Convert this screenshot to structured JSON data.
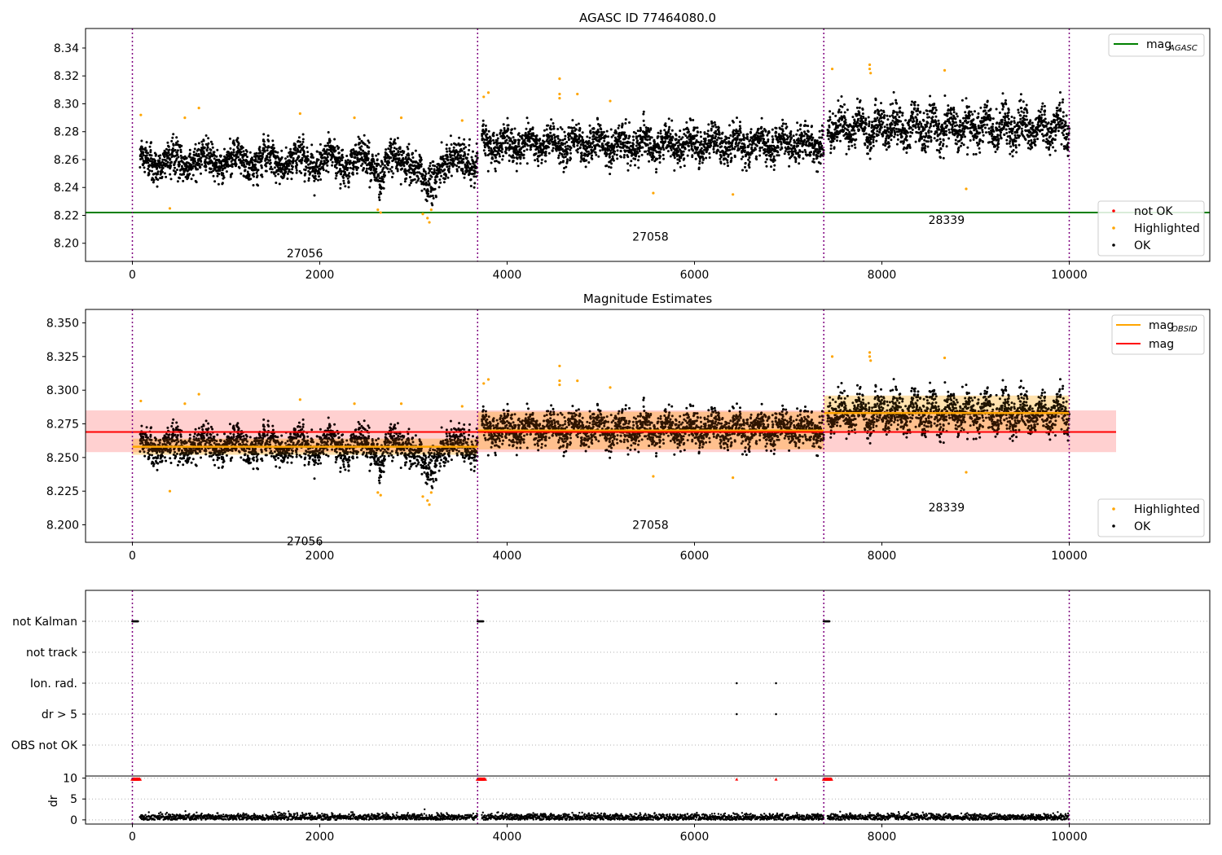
{
  "chart_data": [
    {
      "id": "p1",
      "type": "scatter",
      "title": "AGASC ID 77464080.0",
      "xlabel": "",
      "ylabel": "",
      "xlim": [
        -500,
        11500
      ],
      "ylim": [
        8.187,
        8.354
      ],
      "xticks": [
        0,
        2000,
        4000,
        6000,
        8000,
        10000
      ],
      "yticks": [
        8.2,
        8.22,
        8.24,
        8.26,
        8.28,
        8.3,
        8.32,
        8.34
      ],
      "ytick_decimals": 2,
      "obs_boundaries": [
        0,
        3685,
        7380,
        10000
      ],
      "obs_labels": [
        {
          "text": "27056",
          "x": 1840,
          "y": 8.19
        },
        {
          "text": "27058",
          "x": 5530,
          "y": 8.202
        },
        {
          "text": "28339",
          "x": 8690,
          "y": 8.214
        }
      ],
      "segments": [
        {
          "start": 80,
          "end": 3685,
          "base": 8.259,
          "amp": 0.009,
          "noise": 0.007,
          "dip_at": 3150,
          "dip_depth": 0.03
        },
        {
          "start": 3730,
          "end": 7380,
          "base": 8.271,
          "amp": 0.009,
          "noise": 0.007,
          "dip_at": null,
          "dip_depth": 0
        },
        {
          "start": 7420,
          "end": 10000,
          "base": 8.283,
          "amp": 0.012,
          "noise": 0.008,
          "dip_at": null,
          "dip_depth": 0
        }
      ],
      "highlighted": [
        [
          90,
          8.292
        ],
        [
          400,
          8.225
        ],
        [
          560,
          8.29
        ],
        [
          710,
          8.297
        ],
        [
          1790,
          8.293
        ],
        [
          2370,
          8.29
        ],
        [
          2620,
          8.224
        ],
        [
          2650,
          8.222
        ],
        [
          2870,
          8.29
        ],
        [
          3100,
          8.221
        ],
        [
          3150,
          8.218
        ],
        [
          3170,
          8.215
        ],
        [
          3190,
          8.224
        ],
        [
          3520,
          8.288
        ],
        [
          3750,
          8.305
        ],
        [
          3800,
          8.308
        ],
        [
          4560,
          8.318
        ],
        [
          4560,
          8.307
        ],
        [
          4560,
          8.304
        ],
        [
          4750,
          8.307
        ],
        [
          5100,
          8.302
        ],
        [
          5560,
          8.236
        ],
        [
          6410,
          8.235
        ],
        [
          7470,
          8.325
        ],
        [
          7870,
          8.328
        ],
        [
          7870,
          8.325
        ],
        [
          7880,
          8.322
        ],
        [
          8670,
          8.324
        ],
        [
          8900,
          8.239
        ]
      ],
      "hlines": [
        {
          "name": "mag_AGASC",
          "value": 8.222,
          "color": "#008000"
        }
      ],
      "legend_top": {
        "position": "top-right",
        "entries": [
          {
            "label": "mag",
            "sub": "AGASC",
            "color": "#008000"
          }
        ]
      },
      "legend_bottom": {
        "position": "lower-right",
        "entries": [
          {
            "label": "not OK",
            "color": "#ff0000"
          },
          {
            "label": "Highlighted",
            "color": "#ffa500"
          },
          {
            "label": "OK",
            "color": "#000000"
          }
        ]
      }
    },
    {
      "id": "p2",
      "type": "scatter",
      "title": "Magnitude Estimates",
      "xlabel": "",
      "ylabel": "",
      "xlim": [
        -500,
        11500
      ],
      "ylim": [
        8.187,
        8.36
      ],
      "xticks": [
        0,
        2000,
        4000,
        6000,
        8000,
        10000
      ],
      "yticks": [
        8.2,
        8.225,
        8.25,
        8.275,
        8.3,
        8.325,
        8.35
      ],
      "ytick_decimals": 3,
      "obs_boundaries": [
        0,
        3685,
        7380,
        10000
      ],
      "obs_labels": [
        {
          "text": "27056",
          "x": 1840,
          "y": 8.185
        },
        {
          "text": "27058",
          "x": 5530,
          "y": 8.197
        },
        {
          "text": "28339",
          "x": 8690,
          "y": 8.21
        }
      ],
      "mag": {
        "value": 8.269,
        "band": [
          8.254,
          8.285
        ],
        "xrange": [
          -500,
          10500
        ],
        "color": "#ff0000"
      },
      "mag_obsid": [
        {
          "start": 0,
          "end": 3685,
          "value": 8.258,
          "band": [
            8.252,
            8.264
          ]
        },
        {
          "start": 3685,
          "end": 7380,
          "value": 8.27,
          "band": [
            8.256,
            8.284
          ]
        },
        {
          "start": 7380,
          "end": 10000,
          "value": 8.283,
          "band": [
            8.27,
            8.296
          ]
        }
      ],
      "legend_top": {
        "position": "top-right",
        "entries": [
          {
            "label": "mag",
            "sub": "OBSID",
            "color": "#ffa500"
          },
          {
            "label": "mag",
            "sub": "",
            "color": "#ff0000"
          }
        ]
      },
      "legend_bottom": {
        "position": "lower-right",
        "entries": [
          {
            "label": "Highlighted",
            "color": "#ffa500"
          },
          {
            "label": "OK",
            "color": "#000000"
          }
        ]
      }
    },
    {
      "id": "p3",
      "type": "scatter",
      "title": "",
      "xlim": [
        -500,
        11500
      ],
      "xticks": [
        0,
        2000,
        4000,
        6000,
        8000,
        10000
      ],
      "flag_rows": [
        "not Kalman",
        "not track",
        "Ion. rad.",
        "dr > 5",
        "OBS not OK"
      ],
      "not_kalman_x": [
        0,
        60,
        3685,
        3745,
        7380,
        7440
      ],
      "ion_rad_x": [
        6450,
        6870
      ],
      "dr_gt5_x": [
        6450,
        6870
      ],
      "dr_axis": {
        "label": "dr",
        "yticks": [
          0,
          5,
          10
        ],
        "ylim": [
          -1,
          10.5
        ]
      },
      "dr_red_x": [
        0,
        80,
        3685,
        3765,
        7380,
        7460
      ],
      "dr_red_single": [
        6450,
        6870
      ]
    }
  ]
}
